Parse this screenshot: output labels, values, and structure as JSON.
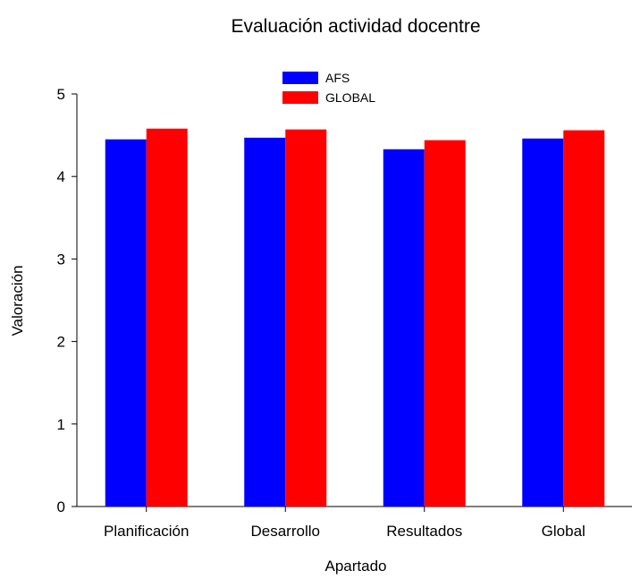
{
  "chart_data": {
    "type": "bar",
    "title": "Evaluación actividad docentre",
    "xlabel": "Apartado",
    "ylabel": "Valoración",
    "ylim": [
      0,
      5
    ],
    "yticks": [
      "0",
      "1",
      "2",
      "3",
      "4",
      "5"
    ],
    "categories": [
      "Planificación",
      "Desarrollo",
      "Resultados",
      "Global"
    ],
    "series": [
      {
        "name": "AFS",
        "color": "#0000ff",
        "values": [
          4.45,
          4.47,
          4.33,
          4.46
        ]
      },
      {
        "name": "GLOBAL",
        "color": "#ff0000",
        "values": [
          4.58,
          4.57,
          4.44,
          4.56
        ]
      }
    ],
    "legend_position": "top-center",
    "grid": false
  }
}
